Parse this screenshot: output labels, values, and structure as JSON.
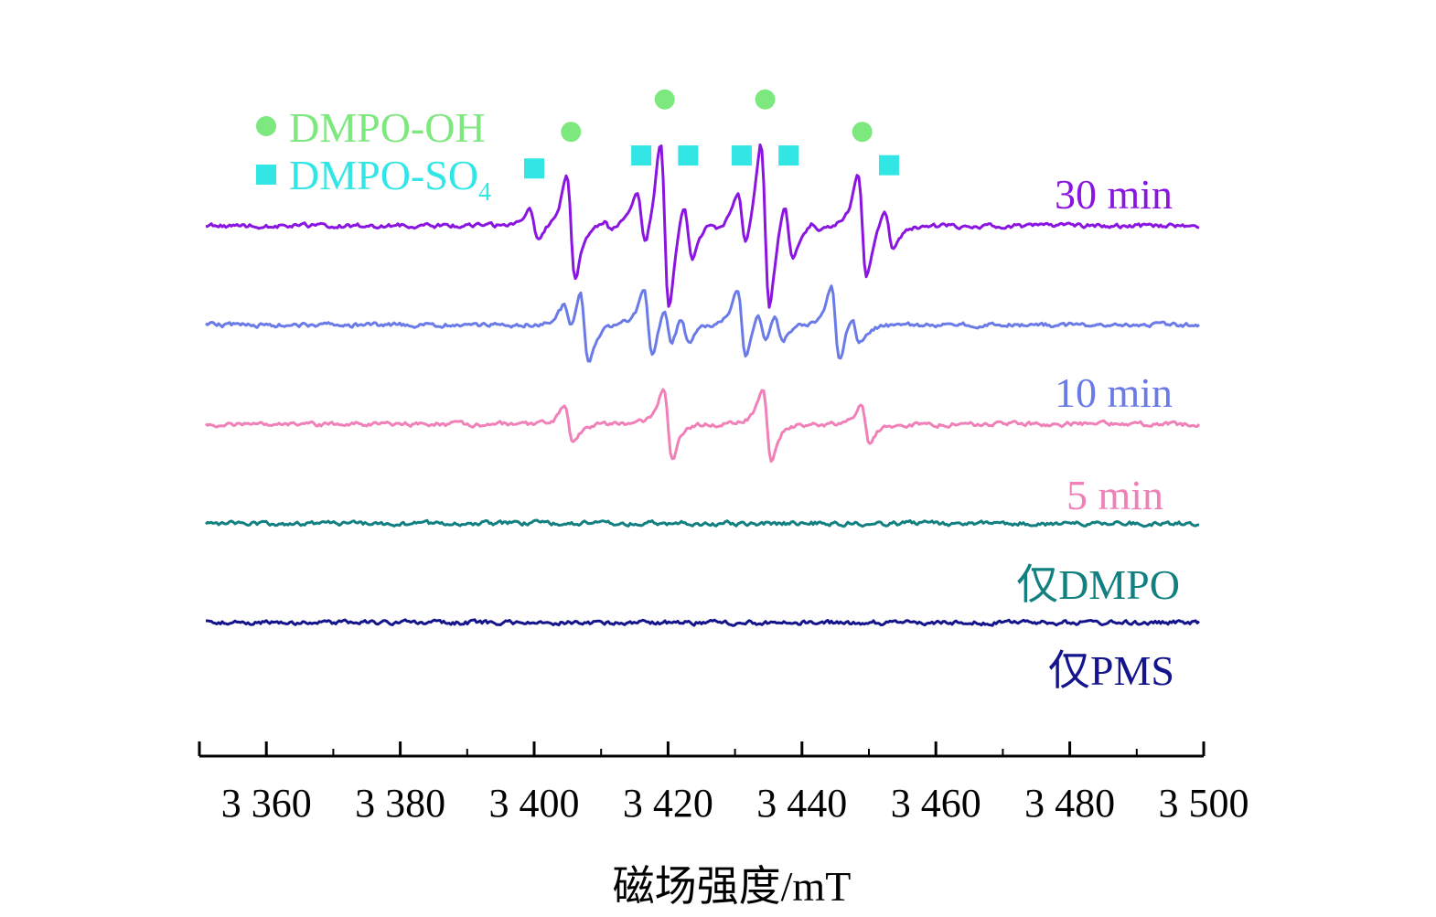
{
  "chart_data": {
    "type": "line",
    "xlabel": "磁场强度/mT",
    "ylabel": "",
    "xlim": [
      3350,
      3500
    ],
    "x_ticks": [
      3360,
      3380,
      3400,
      3420,
      3440,
      3460,
      3480,
      3500
    ],
    "x_tick_labels": [
      "3 360",
      "3 380",
      "3 400",
      "3 420",
      "3 440",
      "3 460",
      "3 480",
      "3 500"
    ],
    "y_axis_visible": false,
    "grid": false,
    "legend": {
      "placement": "top-left",
      "entries": [
        {
          "marker": "circle",
          "label": "DMPO-OH",
          "color": "#7de87d"
        },
        {
          "marker": "square",
          "label_main": "DMPO-SO",
          "label_sub": "4",
          "color": "#33e6e6"
        }
      ]
    },
    "marker_positions": {
      "DMPO-OH": [
        3405.5,
        3419.5,
        3434.5,
        3449
      ],
      "DMPO-SO4": [
        3400,
        3416,
        3423,
        3431,
        3438,
        3453
      ]
    },
    "series": [
      {
        "name": "30 min",
        "color": "#8a14e0",
        "baseline": 0,
        "peaks": [
          [
            3400,
            0.5
          ],
          [
            3405.5,
            1.6
          ],
          [
            3411,
            0.15
          ],
          [
            3416,
            0.9
          ],
          [
            3419.5,
            2.6
          ],
          [
            3423,
            0.9
          ],
          [
            3427,
            0.15
          ],
          [
            3431,
            0.9
          ],
          [
            3434.5,
            2.6
          ],
          [
            3438,
            0.9
          ],
          [
            3442,
            0.15
          ],
          [
            3449,
            1.6
          ],
          [
            3453,
            0.6
          ]
        ]
      },
      {
        "name": "10 min",
        "color": "#6a7be8",
        "baseline": -1,
        "peaks": [
          [
            3405,
            0.45
          ],
          [
            3407.5,
            1.15
          ],
          [
            3417,
            1.05
          ],
          [
            3420,
            0.6
          ],
          [
            3422.5,
            0.45
          ],
          [
            3431,
            1.05
          ],
          [
            3434,
            0.55
          ],
          [
            3436.5,
            0.45
          ],
          [
            3445,
            1.15
          ],
          [
            3448,
            0.45
          ]
        ]
      },
      {
        "name": "5 min",
        "color": "#f080b8",
        "baseline": -2,
        "peaks": [
          [
            3405.2,
            0.55
          ],
          [
            3420,
            1.1
          ],
          [
            3434.8,
            1.1
          ],
          [
            3449.5,
            0.6
          ]
        ]
      },
      {
        "name": "仅DMPO",
        "color": "#128080",
        "baseline": -3,
        "peaks": []
      },
      {
        "name": "仅PMS",
        "color": "#14148c",
        "baseline": -4,
        "peaks": []
      }
    ]
  }
}
